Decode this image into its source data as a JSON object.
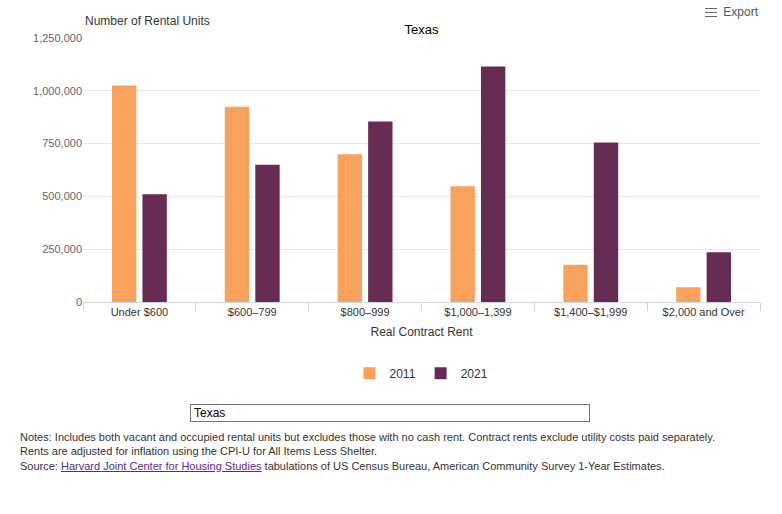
{
  "chart_data": {
    "type": "bar",
    "title": "Texas",
    "y_label": "Number of Rental Units",
    "x_label": "Real Contract Rent",
    "categories": [
      "Under $600",
      "$600–799",
      "$800–999",
      "$1,000–1,399",
      "$1,400–$1,999",
      "$2,000 and Over"
    ],
    "series": [
      {
        "name": "2011",
        "color": "#f8a25e",
        "values": [
          1025000,
          925000,
          700000,
          548000,
          176000,
          70000
        ]
      },
      {
        "name": "2021",
        "color": "#672c52",
        "values": [
          510000,
          650000,
          855000,
          1115000,
          755000,
          236000
        ]
      }
    ],
    "ylim": [
      0,
      1250000
    ],
    "yticks": [
      0,
      {
        "value": 250000,
        "label": "250,000"
      },
      {
        "value": 500000,
        "label": "500,000"
      },
      {
        "value": 750000,
        "label": "750,000"
      },
      {
        "value": 1000000,
        "label": "1,000,000"
      },
      {
        "value": 1250000,
        "label": "1,250,000"
      }
    ],
    "grid": true,
    "legend": "bottom"
  },
  "page": {
    "export_label": "Export",
    "dropdown": "Texas",
    "notes": "Notes: Includes both vacant and occupied rental units but excludes those with no cash rent. Contract rents exclude utility costs paid separately. Rents are adjusted for inflation using the CPI-U for All Items Less Shelter.",
    "source": {
      "prefix": "Source: ",
      "link": "Harvard Joint Center for Housing Studies",
      "suffix": " tabulations of US Census Bureau, American Community Survey 1-Year Estimates."
    }
  }
}
